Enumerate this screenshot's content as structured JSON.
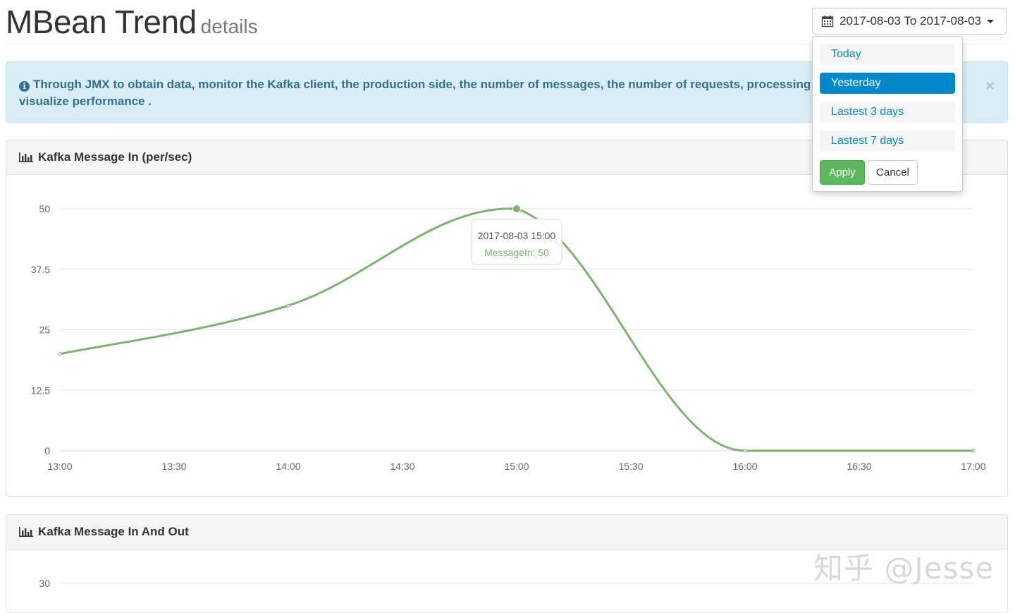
{
  "header": {
    "title": "MBean Trend",
    "subtitle": "details",
    "date_range": "2017-08-03 To 2017-08-03",
    "calendar_icon": "calendar-icon",
    "caret_icon": "caret-down-icon"
  },
  "alert": {
    "icon": "info-circle-icon",
    "text": "Through JMX to obtain data, monitor the Kafka client, the production side, the number of messages, the number of requests, processing t",
    "text_line2": "visualize performance .",
    "close_label": "×"
  },
  "panel1": {
    "title": "Kafka Message In (per/sec)",
    "icon": "bar-chart-icon"
  },
  "panel2": {
    "title": "Kafka Message In And Out",
    "icon": "bar-chart-icon",
    "y_tick_top": "30"
  },
  "tooltip": {
    "time": "2017-08-03 15:00",
    "series_value": "MessageIn: 50"
  },
  "range_picker": {
    "options": [
      "Today",
      "Yesterday",
      "Lastest 3 days",
      "Lastest 7 days"
    ],
    "active_index": 1,
    "apply_label": "Apply",
    "cancel_label": "Cancel"
  },
  "watermark": "知乎 @Jesse",
  "colors": {
    "line": "#7cb36f",
    "active": "#0088cc",
    "apply": "#5cb85c",
    "alert_bg": "#d9edf7"
  },
  "chart_data": {
    "type": "line",
    "x": [
      "13:00",
      "14:00",
      "15:00",
      "16:00",
      "17:00"
    ],
    "series": [
      {
        "name": "MessageIn",
        "values": [
          20,
          30,
          50,
          0,
          0
        ]
      }
    ],
    "x_ticks": [
      "13:00",
      "13:30",
      "14:00",
      "14:30",
      "15:00",
      "15:30",
      "16:00",
      "16:30",
      "17:00"
    ],
    "y_ticks": [
      "0",
      "12.5",
      "25",
      "37.5",
      "50"
    ],
    "ylim": [
      0,
      50
    ],
    "grid": true,
    "highlighted_point": {
      "x": "15:00",
      "y": 50
    }
  }
}
